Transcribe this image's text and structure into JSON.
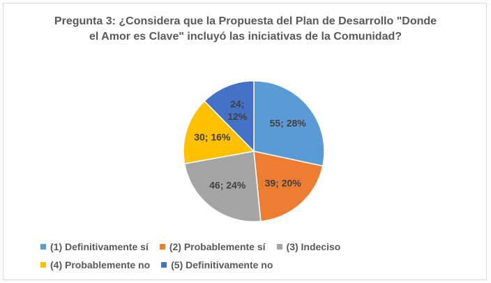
{
  "chart_data": {
    "type": "pie",
    "title": "Pregunta 3: ¿Considera que la Propuesta del Plan de Desarrollo \"Donde el Amor es Clave\" incluyó las iniciativas de la Comunidad?",
    "categories": [
      "(1)  Definitivamente sí",
      "(2)  Probablemente sí",
      "(3)  Indeciso",
      "(4)  Probablemente no",
      "(5)  Definitivamente no"
    ],
    "values": [
      55,
      39,
      46,
      30,
      24
    ],
    "value_labels": [
      "55; 28%",
      "39; 20%",
      "46; 24%",
      "30; 16%",
      "24; 12%"
    ],
    "colors": [
      "#5b9bd5",
      "#ed7d31",
      "#a5a5a5",
      "#ffc000",
      "#4472c4"
    ],
    "legend": "bottom"
  }
}
